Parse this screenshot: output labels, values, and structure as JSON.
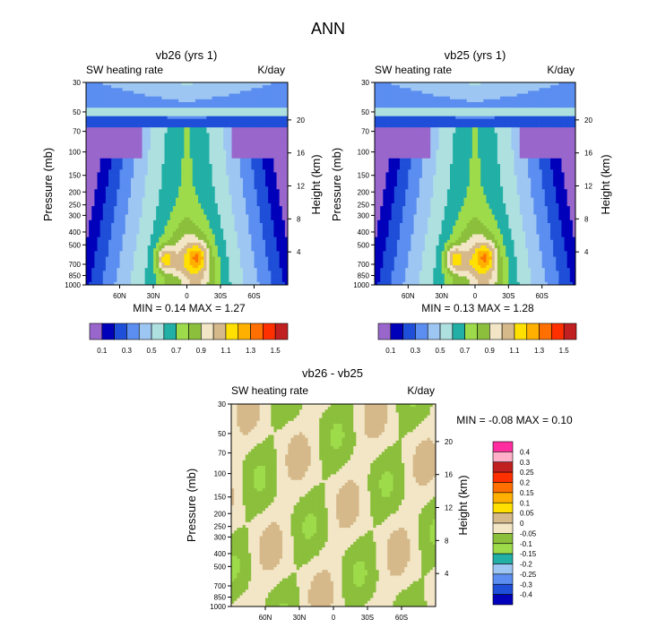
{
  "figure_title": "ANN",
  "colors": {
    "abs_palette": [
      "#9966cc",
      "#0000bb",
      "#1f4fd8",
      "#5b8ef0",
      "#9ec6f2",
      "#aee0e0",
      "#22b0a6",
      "#9edb4a",
      "#8bbf3c",
      "#f2e6c6",
      "#d6b98a",
      "#ffe000",
      "#ffb000",
      "#ff7000",
      "#ff3000",
      "#c02020",
      "#ffb0c8",
      "#ff2ea0"
    ],
    "diff_palette": [
      "#9966cc",
      "#0000bb",
      "#1f4fd8",
      "#5b8ef0",
      "#9ec6f2",
      "#22b0a6",
      "#9edb4a",
      "#8bbf3c",
      "#f2e6c6",
      "#d6b98a",
      "#ffe000",
      "#ffb000",
      "#ff7000",
      "#ff3000",
      "#c02020",
      "#ffb0c8",
      "#ff2ea0"
    ]
  },
  "chart_data": [
    {
      "type": "contour",
      "title": "vb26 (yrs 1)",
      "left_label": "SW heating rate",
      "right_label": "K/day",
      "ylabel": "Pressure (mb)",
      "ylabel_right": "Height (km)",
      "x_ticks": [
        "60N",
        "30N",
        "0",
        "30S",
        "60S"
      ],
      "x_tick_lats": [
        60,
        30,
        0,
        -30,
        -60
      ],
      "xlim": [
        90,
        -90
      ],
      "p_ticks": [
        "30",
        "50",
        "70",
        "100",
        "150",
        "200",
        "250",
        "300",
        "400",
        "500",
        "700",
        "850",
        "1000"
      ],
      "p_values": [
        30,
        50,
        70,
        100,
        150,
        200,
        250,
        300,
        400,
        500,
        700,
        850,
        1000
      ],
      "ylim": [
        30,
        1000
      ],
      "height_ticks": [
        "20",
        "16",
        "12",
        "8",
        "4"
      ],
      "height_values": [
        20,
        16,
        12,
        8,
        4
      ],
      "min_max": "MIN =   0.14  MAX =   1.27",
      "colorbar_labels": [
        "0.1",
        "0.3",
        "0.5",
        "0.7",
        "0.9",
        "1.1",
        "1.3",
        "1.5"
      ],
      "levels": [
        0.1,
        0.2,
        0.3,
        0.4,
        0.5,
        0.6,
        0.7,
        0.8,
        0.9,
        1.0,
        1.1,
        1.2,
        1.3,
        1.4,
        1.5
      ]
    },
    {
      "type": "contour",
      "title": "vb25 (yrs 1)",
      "left_label": "SW heating rate",
      "right_label": "K/day",
      "ylabel": "Pressure (mb)",
      "ylabel_right": "Height (km)",
      "x_ticks": [
        "60N",
        "30N",
        "0",
        "30S",
        "60S"
      ],
      "x_tick_lats": [
        60,
        30,
        0,
        -30,
        -60
      ],
      "xlim": [
        90,
        -90
      ],
      "p_ticks": [
        "30",
        "50",
        "70",
        "100",
        "150",
        "200",
        "250",
        "300",
        "400",
        "500",
        "700",
        "850",
        "1000"
      ],
      "p_values": [
        30,
        50,
        70,
        100,
        150,
        200,
        250,
        300,
        400,
        500,
        700,
        850,
        1000
      ],
      "ylim": [
        30,
        1000
      ],
      "height_ticks": [
        "20",
        "16",
        "12",
        "8",
        "4"
      ],
      "height_values": [
        20,
        16,
        12,
        8,
        4
      ],
      "min_max": "MIN =   0.13  MAX =   1.28",
      "colorbar_labels": [
        "0.1",
        "0.3",
        "0.5",
        "0.7",
        "0.9",
        "1.1",
        "1.3",
        "1.5"
      ],
      "levels": [
        0.1,
        0.2,
        0.3,
        0.4,
        0.5,
        0.6,
        0.7,
        0.8,
        0.9,
        1.0,
        1.1,
        1.2,
        1.3,
        1.4,
        1.5
      ]
    },
    {
      "type": "contour",
      "title": "vb26 - vb25",
      "left_label": "SW heating rate",
      "right_label": "K/day",
      "ylabel": "Pressure (mb)",
      "ylabel_right": "Height (km)",
      "x_ticks": [
        "60N",
        "30N",
        "0",
        "30S",
        "60S"
      ],
      "x_tick_lats": [
        60,
        30,
        0,
        -30,
        -60
      ],
      "xlim": [
        90,
        -90
      ],
      "p_ticks": [
        "30",
        "50",
        "70",
        "100",
        "150",
        "200",
        "250",
        "300",
        "400",
        "500",
        "700",
        "850",
        "1000"
      ],
      "p_values": [
        30,
        50,
        70,
        100,
        150,
        200,
        250,
        300,
        400,
        500,
        700,
        850,
        1000
      ],
      "ylim": [
        30,
        1000
      ],
      "height_ticks": [
        "20",
        "16",
        "12",
        "8",
        "4"
      ],
      "height_values": [
        20,
        16,
        12,
        8,
        4
      ],
      "min_max": "MIN =  -0.08  MAX =   0.10",
      "colorbar_labels": [
        "0.4",
        "0.3",
        "0.25",
        "0.2",
        "0.15",
        "0.1",
        "0.05",
        "0",
        "-0.05",
        "-0.1",
        "-0.15",
        "-0.2",
        "-0.25",
        "-0.3",
        "-0.4"
      ],
      "levels": [
        -0.4,
        -0.3,
        -0.25,
        -0.2,
        -0.15,
        -0.1,
        -0.05,
        0,
        0.05,
        0.1,
        0.15,
        0.2,
        0.25,
        0.3,
        0.4
      ]
    }
  ]
}
